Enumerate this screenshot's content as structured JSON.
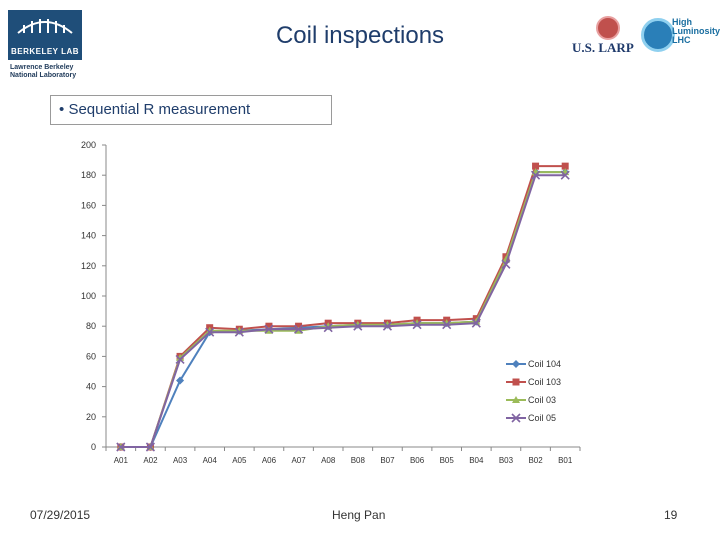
{
  "slide": {
    "title": "Coil inspections",
    "bullet": "Sequential R measurement",
    "bullet_marker": "•",
    "date": "07/29/2015",
    "author": "Heng Pan",
    "page_number": "19"
  },
  "logos": {
    "lbl_name": "BERKELEY LAB",
    "lbl_sub": "Lawrence Berkeley National Laboratory",
    "larp": "U.S. LARP",
    "hl_line1": "High",
    "hl_line2": "Luminosity",
    "hl_line3": "LHC"
  },
  "colors": {
    "coil_104": "#4f81bd",
    "coil_103": "#c0504d",
    "coil_03": "#9bbb59",
    "coil_05": "#8064a2",
    "title": "#1f3d6b"
  },
  "chart_data": {
    "type": "line",
    "categories": [
      "A01",
      "A02",
      "A03",
      "A04",
      "A05",
      "A06",
      "A07",
      "A08",
      "B08",
      "B07",
      "B06",
      "B05",
      "B04",
      "B03",
      "B02",
      "B01"
    ],
    "ylim": [
      0,
      200
    ],
    "yticks": [
      0,
      20,
      40,
      60,
      80,
      100,
      120,
      140,
      160,
      180,
      200
    ],
    "grid": false,
    "legend_placement": "right",
    "series": [
      {
        "name": "Coil 104",
        "marker": "diamond",
        "values": [
          0,
          0,
          44,
          76,
          77,
          78,
          79,
          80,
          81,
          81,
          82,
          82,
          83,
          124,
          182,
          182
        ]
      },
      {
        "name": "Coil 103",
        "marker": "square",
        "values": [
          0,
          0,
          60,
          79,
          78,
          80,
          80,
          82,
          82,
          82,
          84,
          84,
          85,
          126,
          186,
          186
        ]
      },
      {
        "name": "Coil 03",
        "marker": "triangle",
        "values": [
          0,
          0,
          59,
          77,
          77,
          77,
          77,
          80,
          81,
          81,
          82,
          82,
          83,
          124,
          182,
          182
        ]
      },
      {
        "name": "Coil 05",
        "marker": "x",
        "values": [
          0,
          0,
          58,
          76,
          76,
          78,
          78,
          79,
          80,
          80,
          81,
          81,
          82,
          121,
          180,
          180
        ]
      }
    ]
  }
}
